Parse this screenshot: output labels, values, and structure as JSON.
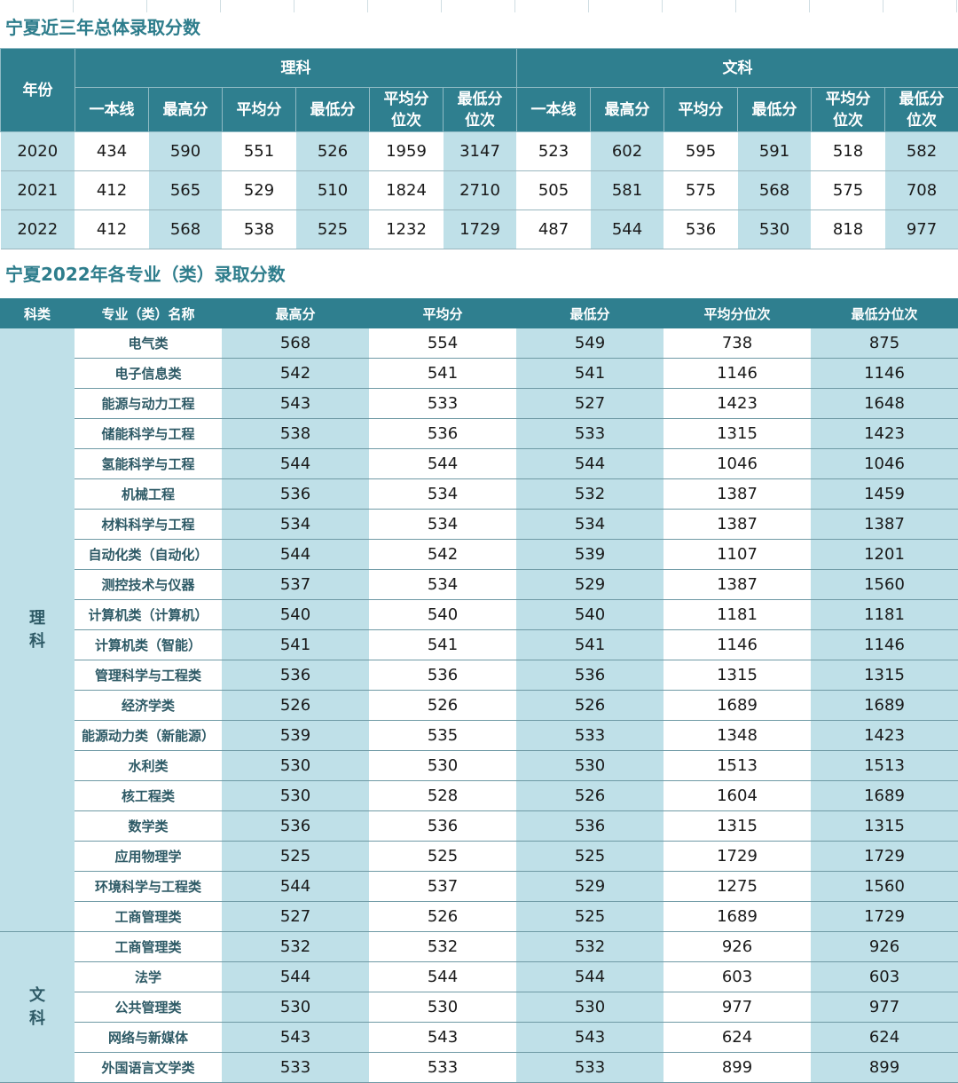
{
  "table1": {
    "title": "宁夏近三年总体录取分数",
    "year_header": "年份",
    "group_science": "理科",
    "group_arts": "文科",
    "sub_headers": [
      "一本线",
      "最高分",
      "平均分",
      "最低分",
      "平均分\n位次",
      "最低分\n位次",
      "一本线",
      "最高分",
      "平均分",
      "最低分",
      "平均分\n位次",
      "最低分\n位次"
    ],
    "rows": [
      [
        "2020",
        "434",
        "590",
        "551",
        "526",
        "1959",
        "3147",
        "523",
        "602",
        "595",
        "591",
        "518",
        "582"
      ],
      [
        "2021",
        "412",
        "565",
        "529",
        "510",
        "1824",
        "2710",
        "505",
        "581",
        "575",
        "568",
        "575",
        "708"
      ],
      [
        "2022",
        "412",
        "568",
        "538",
        "525",
        "1232",
        "1729",
        "487",
        "544",
        "536",
        "530",
        "818",
        "977"
      ]
    ]
  },
  "table2": {
    "title": "宁夏2022年各专业（类）录取分数",
    "headers": [
      "科类",
      "专业（类）名称",
      "最高分",
      "平均分",
      "最低分",
      "平均分位次",
      "最低分位次"
    ],
    "groups": [
      {
        "category": "理\n科",
        "rows": [
          [
            "电气类",
            "568",
            "554",
            "549",
            "738",
            "875"
          ],
          [
            "电子信息类",
            "542",
            "541",
            "541",
            "1146",
            "1146"
          ],
          [
            "能源与动力工程",
            "543",
            "533",
            "527",
            "1423",
            "1648"
          ],
          [
            "储能科学与工程",
            "538",
            "536",
            "533",
            "1315",
            "1423"
          ],
          [
            "氢能科学与工程",
            "544",
            "544",
            "544",
            "1046",
            "1046"
          ],
          [
            "机械工程",
            "536",
            "534",
            "532",
            "1387",
            "1459"
          ],
          [
            "材料科学与工程",
            "534",
            "534",
            "534",
            "1387",
            "1387"
          ],
          [
            "自动化类（自动化）",
            "544",
            "542",
            "539",
            "1107",
            "1201"
          ],
          [
            "测控技术与仪器",
            "537",
            "534",
            "529",
            "1387",
            "1560"
          ],
          [
            "计算机类（计算机）",
            "540",
            "540",
            "540",
            "1181",
            "1181"
          ],
          [
            "计算机类（智能）",
            "541",
            "541",
            "541",
            "1146",
            "1146"
          ],
          [
            "管理科学与工程类",
            "536",
            "536",
            "536",
            "1315",
            "1315"
          ],
          [
            "经济学类",
            "526",
            "526",
            "526",
            "1689",
            "1689"
          ],
          [
            "能源动力类（新能源）",
            "539",
            "535",
            "533",
            "1348",
            "1423"
          ],
          [
            "水利类",
            "530",
            "530",
            "530",
            "1513",
            "1513"
          ],
          [
            "核工程类",
            "530",
            "528",
            "526",
            "1604",
            "1689"
          ],
          [
            "数学类",
            "536",
            "536",
            "536",
            "1315",
            "1315"
          ],
          [
            "应用物理学",
            "525",
            "525",
            "525",
            "1729",
            "1729"
          ],
          [
            "环境科学与工程类",
            "544",
            "537",
            "529",
            "1275",
            "1560"
          ],
          [
            "工商管理类",
            "527",
            "526",
            "525",
            "1689",
            "1729"
          ]
        ]
      },
      {
        "category": "文\n科",
        "rows": [
          [
            "工商管理类",
            "532",
            "532",
            "532",
            "926",
            "926"
          ],
          [
            "法学",
            "544",
            "544",
            "544",
            "603",
            "603"
          ],
          [
            "公共管理类",
            "530",
            "530",
            "530",
            "977",
            "977"
          ],
          [
            "网络与新媒体",
            "543",
            "543",
            "543",
            "624",
            "624"
          ],
          [
            "外国语言文学类",
            "533",
            "533",
            "533",
            "899",
            "899"
          ]
        ]
      }
    ]
  }
}
